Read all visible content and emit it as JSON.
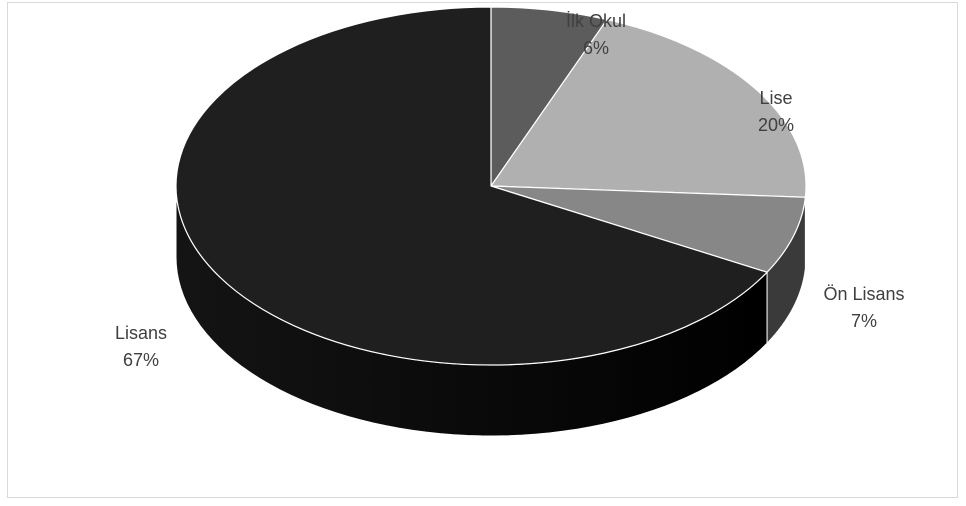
{
  "chart_data": {
    "type": "pie",
    "title": "",
    "legend": "none",
    "categories": [
      "İlk Okul",
      "Lise",
      "Ön Lisans",
      "Lisans"
    ],
    "values": [
      6,
      20,
      7,
      67
    ],
    "percent_labels": [
      "6%",
      "20%",
      "7%",
      "67%"
    ],
    "colors": {
      "İlk Okul": "#5c5c5c",
      "Lise": "#b0b0b0",
      "Ön Lisans": "#878787",
      "Lisans": "#1f1f1f"
    }
  }
}
